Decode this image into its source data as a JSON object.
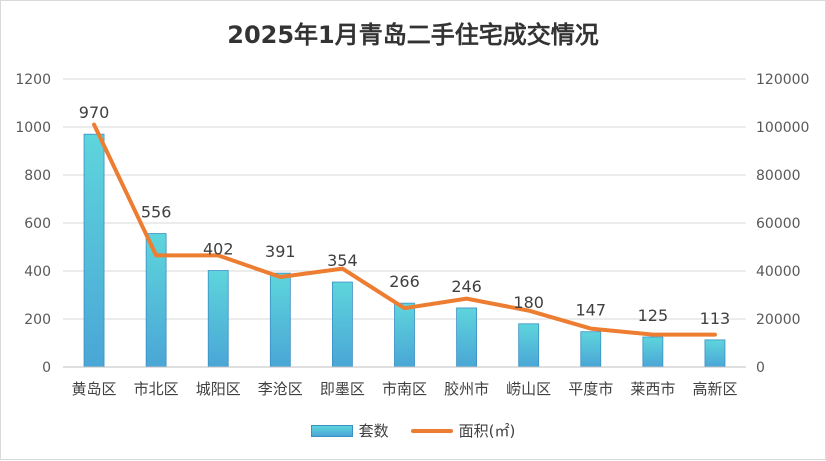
{
  "chart_data": {
    "type": "bar",
    "title": "2025年1月青岛二手住宅成交情况",
    "categories": [
      "黄岛区",
      "市北区",
      "城阳区",
      "李沧区",
      "即墨区",
      "市南区",
      "胶州市",
      "崂山区",
      "平度市",
      "莱西市",
      "高新区"
    ],
    "series": [
      {
        "name": "套数",
        "type": "bar",
        "axis": "left",
        "values": [
          970,
          556,
          402,
          391,
          354,
          266,
          246,
          180,
          147,
          125,
          113
        ],
        "data_labels": [
          "970",
          "556",
          "402",
          "391",
          "354",
          "266",
          "246",
          "180",
          "147",
          "125",
          "113"
        ]
      },
      {
        "name": "面积(㎡)",
        "type": "line",
        "axis": "right",
        "values": [
          101000,
          46500,
          46500,
          37500,
          41000,
          24500,
          28500,
          23500,
          16000,
          13500,
          13500
        ]
      }
    ],
    "y_left": {
      "ylim": [
        0,
        1200
      ],
      "ticks": [
        "0",
        "200",
        "400",
        "600",
        "800",
        "1000",
        "1200"
      ]
    },
    "y_right": {
      "ylim": [
        0,
        120000
      ],
      "ticks": [
        "0",
        "20000",
        "40000",
        "60000",
        "80000",
        "100000",
        "120000"
      ]
    },
    "grid": true,
    "legend_position": "bottom",
    "colors": {
      "bar_top": "#5ed5dc",
      "bar_bottom": "#4aa6d6",
      "bar_edge": "#3a8fc4",
      "line": "#ed7d31",
      "grid": "#d9d9d9"
    }
  }
}
